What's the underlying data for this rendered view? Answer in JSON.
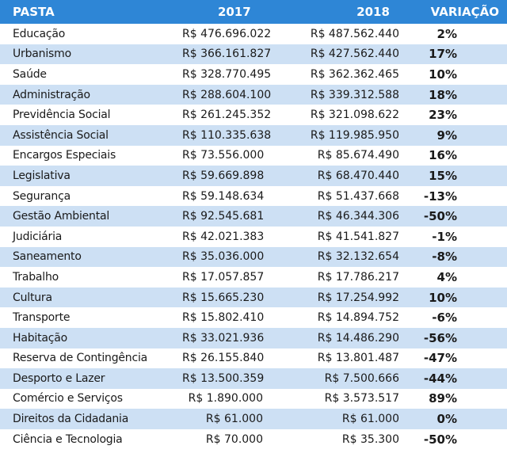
{
  "header": {
    "pasta": "PASTA",
    "y2017": "2017",
    "y2018": "2018",
    "variacao": "VARIAÇÃO"
  },
  "rows": [
    {
      "pasta": "Educação",
      "v2017": "R$ 476.696.022",
      "v2018": "R$ 487.562.440",
      "var": "2%"
    },
    {
      "pasta": "Urbanismo",
      "v2017": "R$ 366.161.827",
      "v2018": "R$ 427.562.440",
      "var": "17%"
    },
    {
      "pasta": "Saúde",
      "v2017": "R$ 328.770.495",
      "v2018": "R$ 362.362.465",
      "var": "10%"
    },
    {
      "pasta": "Administração",
      "v2017": "R$ 288.604.100",
      "v2018": "R$ 339.312.588",
      "var": "18%"
    },
    {
      "pasta": "Previdência Social",
      "v2017": "R$ 261.245.352",
      "v2018": "R$ 321.098.622",
      "var": "23%"
    },
    {
      "pasta": "Assistência Social",
      "v2017": "R$ 110.335.638",
      "v2018": "R$ 119.985.950",
      "var": "9%"
    },
    {
      "pasta": "Encargos Especiais",
      "v2017": "R$ 73.556.000",
      "v2018": "R$ 85.674.490",
      "var": "16%"
    },
    {
      "pasta": "Legislativa",
      "v2017": "R$ 59.669.898",
      "v2018": "R$ 68.470.440",
      "var": "15%"
    },
    {
      "pasta": "Segurança",
      "v2017": "R$ 59.148.634",
      "v2018": "R$ 51.437.668",
      "var": "-13%"
    },
    {
      "pasta": "Gestão Ambiental",
      "v2017": "R$ 92.545.681",
      "v2018": "R$ 46.344.306",
      "var": "-50%"
    },
    {
      "pasta": "Judiciária",
      "v2017": "R$ 42.021.383",
      "v2018": "R$ 41.541.827",
      "var": "-1%"
    },
    {
      "pasta": "Saneamento",
      "v2017": "R$ 35.036.000",
      "v2018": "R$ 32.132.654",
      "var": "-8%"
    },
    {
      "pasta": "Trabalho",
      "v2017": "R$ 17.057.857",
      "v2018": "R$ 17.786.217",
      "var": "4%"
    },
    {
      "pasta": "Cultura",
      "v2017": "R$ 15.665.230",
      "v2018": "R$ 17.254.992",
      "var": "10%"
    },
    {
      "pasta": "Transporte",
      "v2017": "R$ 15.802.410",
      "v2018": "R$ 14.894.752",
      "var": "-6%"
    },
    {
      "pasta": "Habitação",
      "v2017": "R$ 33.021.936",
      "v2018": "R$ 14.486.290",
      "var": "-56%"
    },
    {
      "pasta": "Reserva de Contingência",
      "v2017": "R$ 26.155.840",
      "v2018": "R$ 13.801.487",
      "var": "-47%"
    },
    {
      "pasta": "Desporto e Lazer",
      "v2017": "R$ 13.500.359",
      "v2018": "R$ 7.500.666",
      "var": "-44%"
    },
    {
      "pasta": "Comércio e Serviços",
      "v2017": "R$ 1.890.000",
      "v2018": "R$ 3.573.517",
      "var": "89%"
    },
    {
      "pasta": "Direitos da Cidadania",
      "v2017": "R$ 61.000",
      "v2018": "R$ 61.000",
      "var": "0%"
    },
    {
      "pasta": "Ciência e Tecnologia",
      "v2017": "R$ 70.000",
      "v2018": "R$ 35.300",
      "var": "-50%"
    }
  ],
  "colors": {
    "header_bg": "#2e86d6",
    "header_text": "#ffffff",
    "row_alt_bg": "#cde0f4",
    "row_bg": "#ffffff"
  }
}
